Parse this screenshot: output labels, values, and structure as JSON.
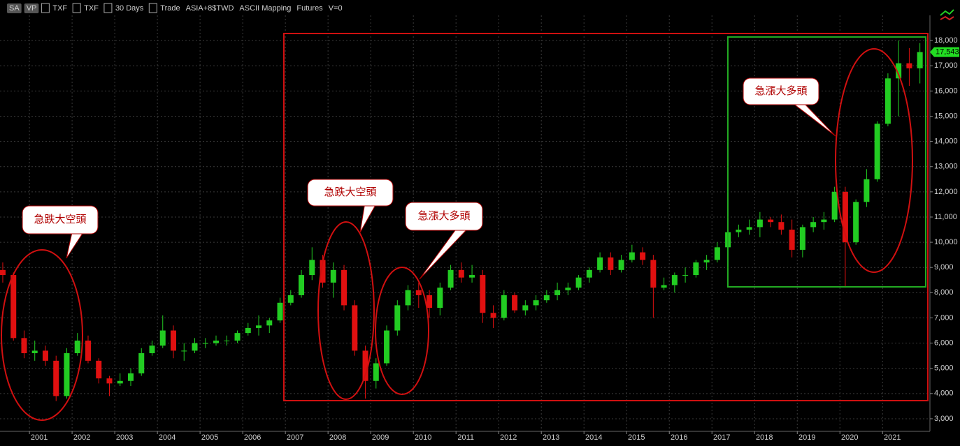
{
  "toolbar": [
    "SA",
    "VP",
    "TXF",
    "TXF",
    "30 Days",
    "Trade",
    "ASIA+8$TWD",
    "ASCII Mapping",
    "Futures",
    "V=0"
  ],
  "chart_data": {
    "type": "candlestick",
    "up_color": "#22cc22",
    "down_color": "#e01010",
    "grid": true,
    "xlim": [
      2000.31,
      2022.11
    ],
    "ylim": [
      2500,
      19000
    ],
    "xticks": [
      2001,
      2002,
      2003,
      2004,
      2005,
      2006,
      2007,
      2008,
      2009,
      2010,
      2011,
      2012,
      2013,
      2014,
      2015,
      2016,
      2017,
      2018,
      2019,
      2020,
      2021
    ],
    "yticks": [
      {
        "value": 3000,
        "label": "3,000"
      },
      {
        "value": 4000,
        "label": "4,000"
      },
      {
        "value": 5000,
        "label": "5,000"
      },
      {
        "value": 6000,
        "label": "6,000"
      },
      {
        "value": 7000,
        "label": "7,000"
      },
      {
        "value": 8000,
        "label": "8,000"
      },
      {
        "value": 9000,
        "label": "9,000"
      },
      {
        "value": 10000,
        "label": "10,000"
      },
      {
        "value": 11000,
        "label": "11,000"
      },
      {
        "value": 12000,
        "label": "12,000"
      },
      {
        "value": 13000,
        "label": "13,000"
      },
      {
        "value": 14000,
        "label": "14,000"
      },
      {
        "value": 15000,
        "label": "15,000"
      },
      {
        "value": 16000,
        "label": "16,000"
      },
      {
        "value": 17000,
        "label": "17,000"
      },
      {
        "value": 18000,
        "label": "18,000"
      }
    ],
    "last_price": {
      "value": 17543,
      "label": "17,543"
    },
    "annotations": [
      "急跌大空頭",
      "急跌大空頭",
      "急漲大多頭",
      "急漲大多頭"
    ],
    "x": [
      2000.375,
      2000.625,
      2000.875,
      2001.125,
      2001.375,
      2001.625,
      2001.875,
      2002.125,
      2002.375,
      2002.625,
      2002.875,
      2003.125,
      2003.375,
      2003.625,
      2003.875,
      2004.125,
      2004.375,
      2004.625,
      2004.875,
      2005.125,
      2005.375,
      2005.625,
      2005.875,
      2006.125,
      2006.375,
      2006.625,
      2006.875,
      2007.125,
      2007.375,
      2007.625,
      2007.875,
      2008.125,
      2008.375,
      2008.625,
      2008.875,
      2009.125,
      2009.375,
      2009.625,
      2009.875,
      2010.125,
      2010.375,
      2010.625,
      2010.875,
      2011.125,
      2011.375,
      2011.625,
      2011.875,
      2012.125,
      2012.375,
      2012.625,
      2012.875,
      2013.125,
      2013.375,
      2013.625,
      2013.875,
      2014.125,
      2014.375,
      2014.625,
      2014.875,
      2015.125,
      2015.375,
      2015.625,
      2015.875,
      2016.125,
      2016.375,
      2016.625,
      2016.875,
      2017.125,
      2017.375,
      2017.625,
      2017.875,
      2018.125,
      2018.375,
      2018.625,
      2018.875,
      2019.125,
      2019.375,
      2019.625,
      2019.875,
      2020.125,
      2020.375,
      2020.625,
      2020.875,
      2021.125,
      2021.375,
      2021.625,
      2021.875
    ],
    "open": [
      8900,
      8700,
      6200,
      5600,
      5700,
      5300,
      3900,
      5600,
      6100,
      5300,
      4600,
      4400,
      4500,
      4800,
      5600,
      5900,
      6500,
      5700,
      5700,
      6000,
      6000,
      6100,
      6100,
      6400,
      6600,
      6700,
      6900,
      7600,
      7900,
      8700,
      9300,
      8400,
      8900,
      7500,
      5700,
      4500,
      5200,
      6500,
      7500,
      8100,
      7900,
      7400,
      8200,
      8900,
      8600,
      8700,
      7200,
      7000,
      7900,
      7300,
      7500,
      7700,
      7900,
      8100,
      8200,
      8600,
      8900,
      9400,
      8900,
      9300,
      9600,
      9300,
      8200,
      8300,
      8700,
      8700,
      9200,
      9300,
      9800,
      10400,
      10500,
      10600,
      10900,
      10800,
      10500,
      9700,
      10600,
      10800,
      10900,
      12000,
      10000,
      11600,
      12500,
      14700,
      16500,
      17100,
      16900
    ],
    "high": [
      9200,
      8800,
      6500,
      6100,
      5900,
      5500,
      5800,
      6400,
      6300,
      5400,
      4700,
      4800,
      5000,
      5800,
      6100,
      7100,
      6700,
      6000,
      6200,
      6200,
      6300,
      6300,
      6500,
      6800,
      7100,
      7000,
      7800,
      8100,
      8900,
      9800,
      9500,
      9200,
      9100,
      7700,
      5900,
      5400,
      6700,
      7700,
      8300,
      8400,
      8100,
      8400,
      9100,
      9200,
      9100,
      8900,
      7500,
      8100,
      8000,
      7700,
      7900,
      8100,
      8400,
      8400,
      8700,
      9000,
      9600,
      9600,
      9500,
      9900,
      9800,
      9500,
      8600,
      8800,
      9000,
      9300,
      9500,
      10000,
      10500,
      10700,
      10900,
      11200,
      11000,
      11100,
      10900,
      10700,
      11000,
      11200,
      12200,
      12200,
      11700,
      12900,
      14800,
      16700,
      18000,
      17700,
      17900
    ],
    "low": [
      8400,
      6100,
      5400,
      5300,
      5100,
      3700,
      3800,
      5500,
      5200,
      4400,
      3900,
      4300,
      4300,
      4700,
      5500,
      5800,
      5400,
      5300,
      5600,
      5800,
      5900,
      5900,
      6000,
      6300,
      6300,
      6400,
      6800,
      7500,
      7800,
      8500,
      8200,
      7800,
      7300,
      5500,
      3800,
      4200,
      5100,
      6300,
      7300,
      7400,
      7000,
      7100,
      8100,
      8400,
      8400,
      6800,
      6600,
      6900,
      7200,
      7100,
      7300,
      7600,
      7700,
      7900,
      8100,
      8400,
      8800,
      8700,
      8800,
      9200,
      9100,
      7000,
      8100,
      8000,
      8400,
      8600,
      8900,
      9200,
      9700,
      10200,
      10300,
      10200,
      10600,
      10300,
      9400,
      9400,
      10400,
      10500,
      10800,
      8200,
      9900,
      11400,
      12400,
      14600,
      15000,
      16200,
      16300
    ],
    "close": [
      8700,
      6200,
      5600,
      5700,
      5300,
      3900,
      5600,
      6100,
      5300,
      4600,
      4400,
      4500,
      4800,
      5600,
      5900,
      6500,
      5700,
      5700,
      6000,
      6000,
      6100,
      6100,
      6400,
      6600,
      6700,
      6900,
      7600,
      7900,
      8700,
      9300,
      8400,
      8900,
      7500,
      5700,
      4500,
      5200,
      6500,
      7500,
      8100,
      7900,
      7400,
      8200,
      8900,
      8600,
      8700,
      7200,
      7000,
      7900,
      7300,
      7500,
      7700,
      7900,
      8100,
      8200,
      8600,
      8900,
      9400,
      8900,
      9300,
      9600,
      9300,
      8200,
      8300,
      8700,
      8700,
      9200,
      9300,
      9800,
      10400,
      10500,
      10600,
      10900,
      10800,
      10500,
      9700,
      10600,
      10800,
      10900,
      12000,
      10000,
      11600,
      12500,
      14700,
      16500,
      17100,
      16900,
      17543
    ]
  }
}
